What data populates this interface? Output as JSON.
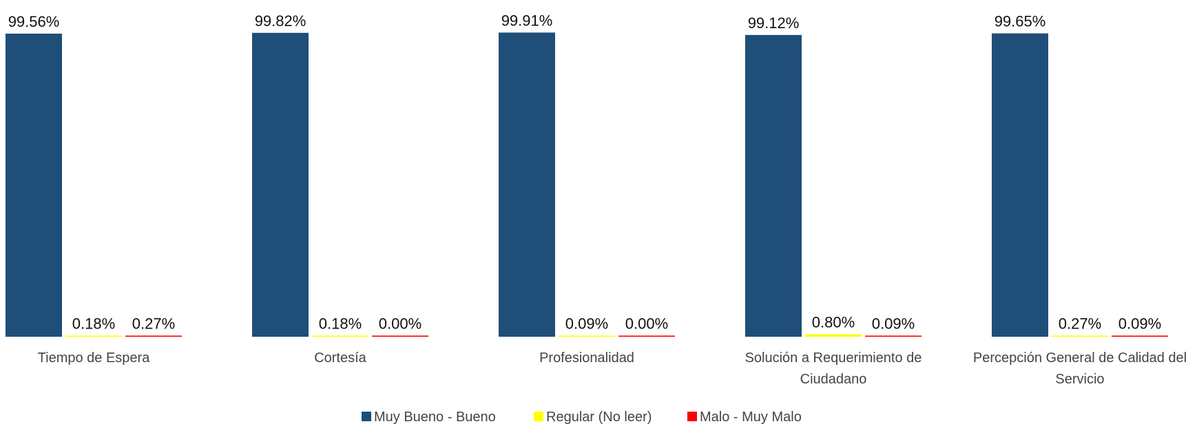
{
  "chart_data": {
    "type": "bar",
    "title": "",
    "xlabel": "",
    "ylabel": "",
    "ylim": [
      0,
      100
    ],
    "grid": false,
    "legend_position": "bottom",
    "value_format": "percent-2dp",
    "categories": [
      [
        "Tiempo de Espera"
      ],
      [
        "Cortesía"
      ],
      [
        "Profesionalidad"
      ],
      [
        "Solución a Requerimiento de",
        "Ciudadano"
      ],
      [
        "Percepción General de Calidad del",
        "Servicio"
      ]
    ],
    "series": [
      {
        "name": "Muy Bueno - Bueno",
        "color": "#1F4E79",
        "values": [
          99.56,
          99.82,
          99.91,
          99.12,
          99.65
        ],
        "labels": [
          "99.56%",
          "99.82%",
          "99.91%",
          "99.12%",
          "99.65%"
        ]
      },
      {
        "name": "Regular (No leer)",
        "color": "#FFFF00",
        "values": [
          0.18,
          0.18,
          0.09,
          0.8,
          0.27
        ],
        "labels": [
          "0.18%",
          "0.18%",
          "0.09%",
          "0.80%",
          "0.27%"
        ]
      },
      {
        "name": "Malo - Muy Malo",
        "color": "#FF0000",
        "values": [
          0.27,
          0.0,
          0.0,
          0.09,
          0.09
        ],
        "labels": [
          "0.27%",
          "0.00%",
          "0.00%",
          "0.09%",
          "0.09%"
        ]
      }
    ]
  }
}
